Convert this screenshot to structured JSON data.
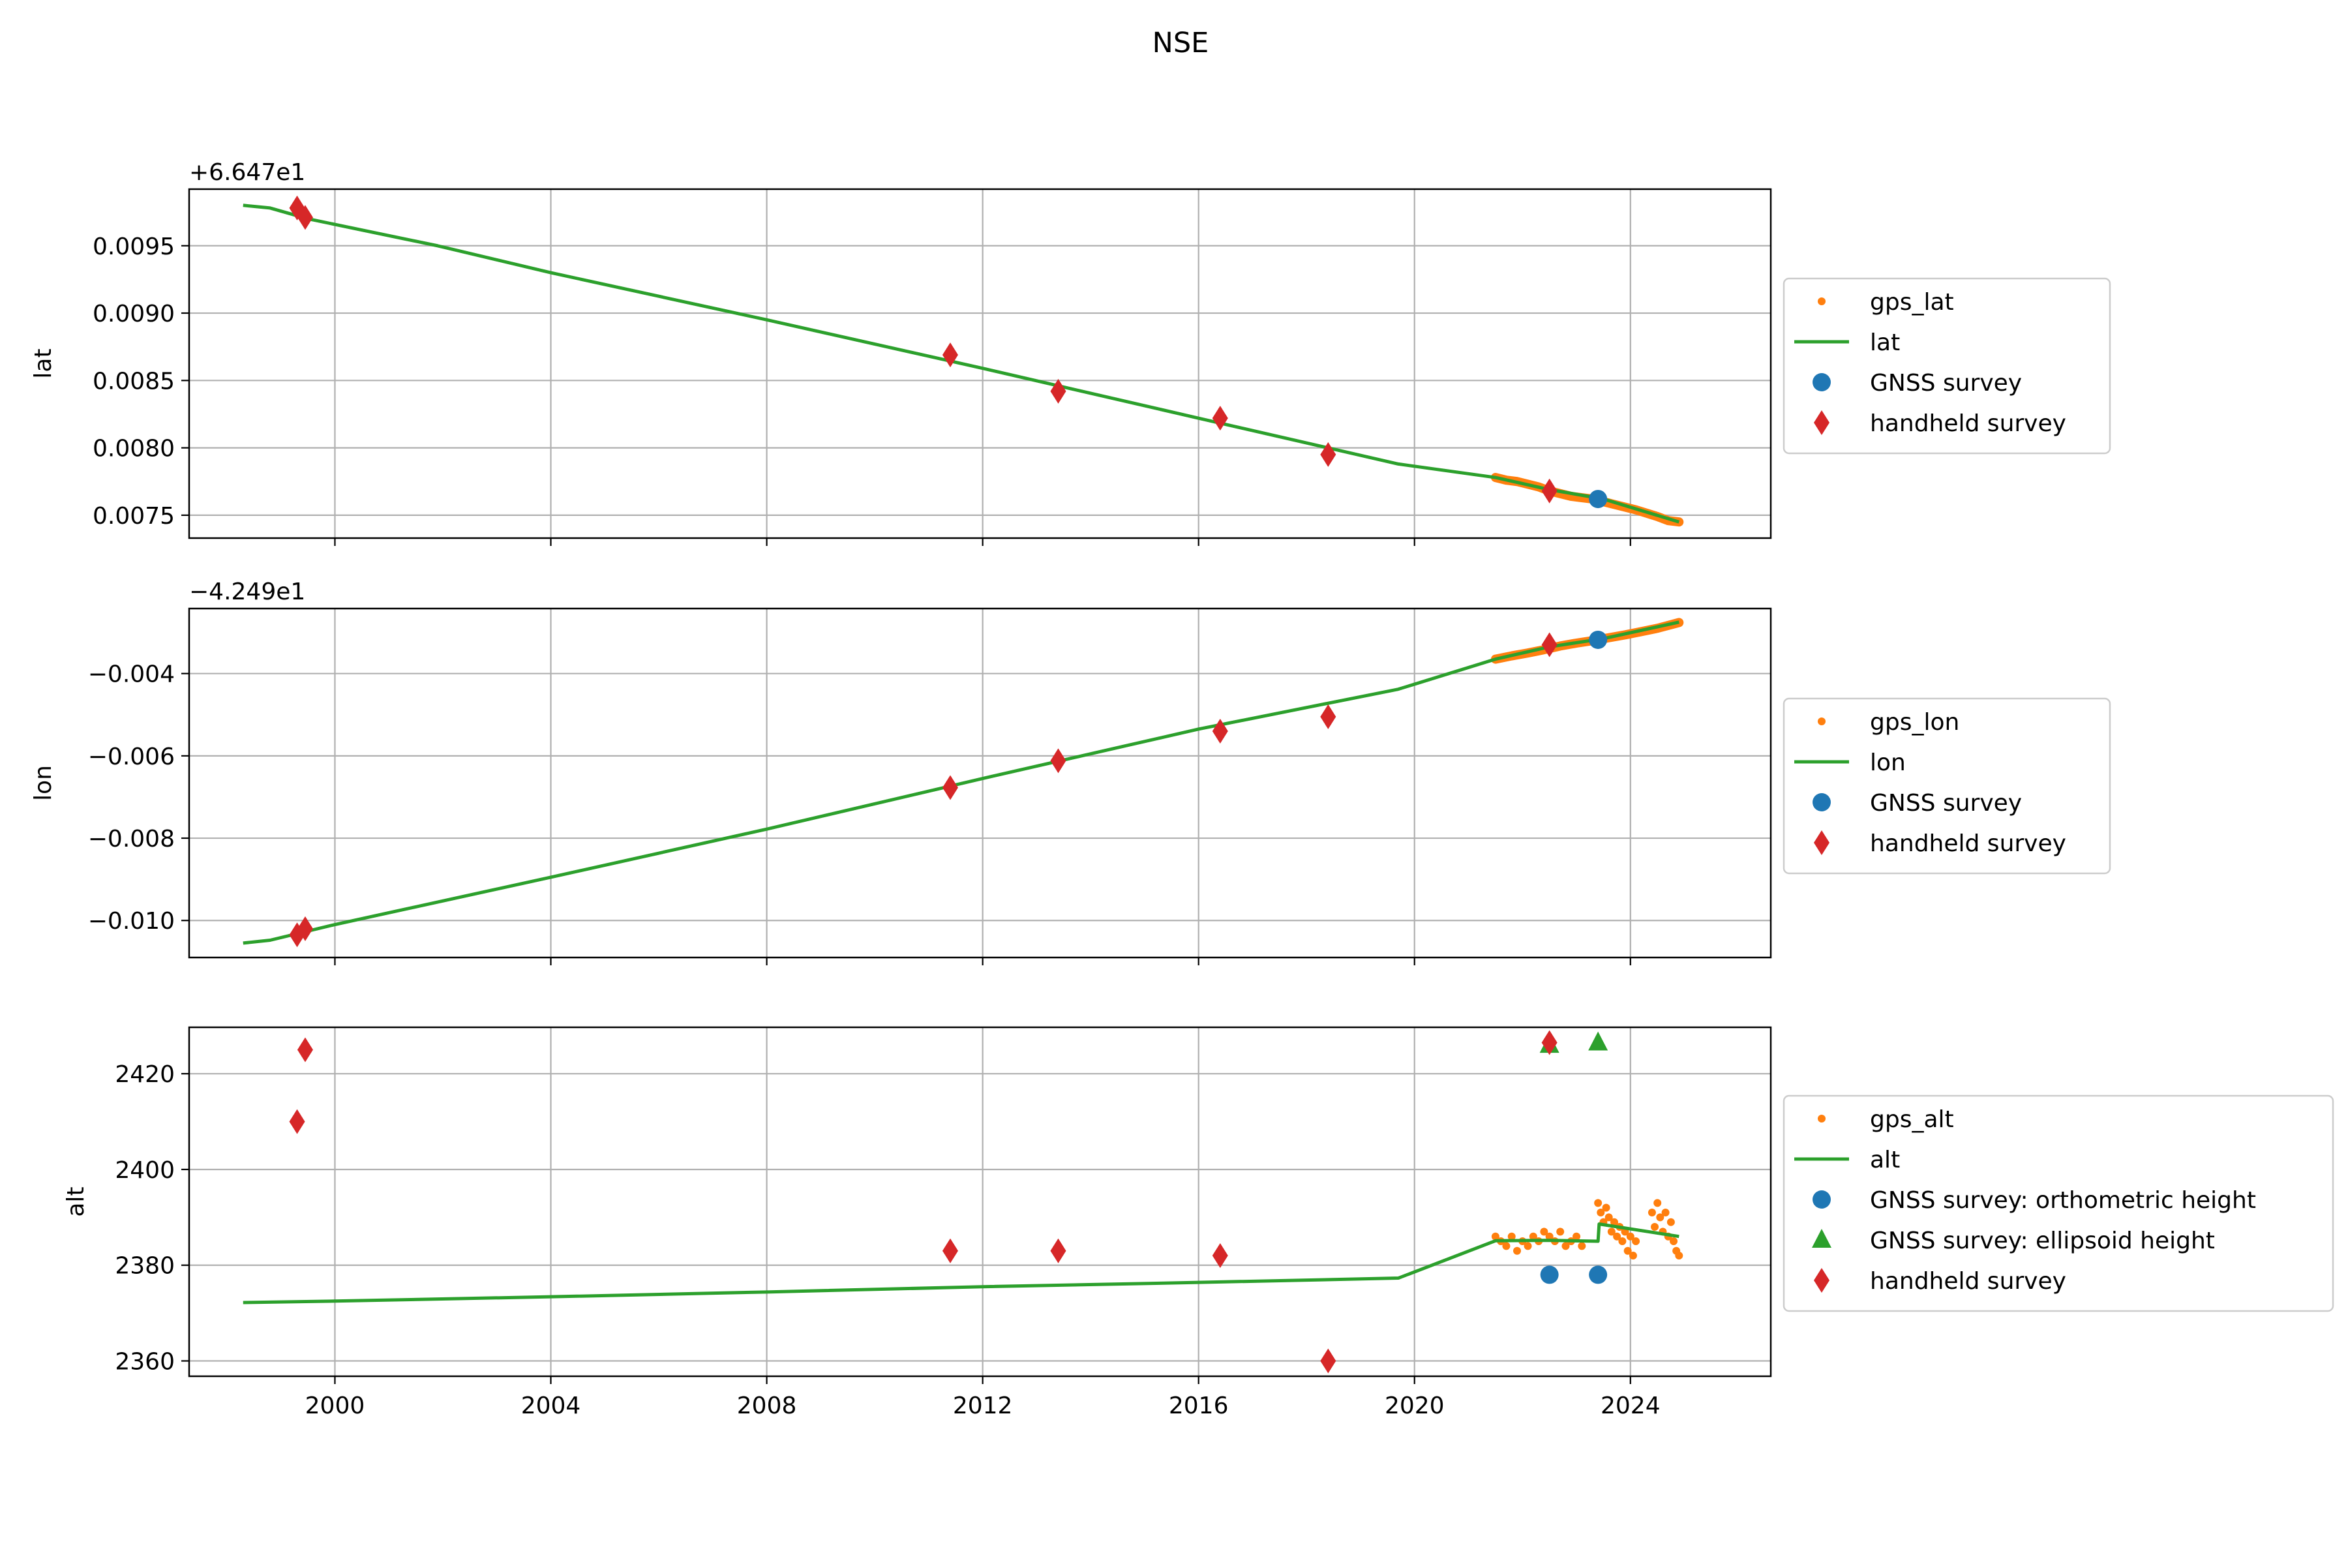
{
  "title": "NSE",
  "chart_data": [
    {
      "type": "line",
      "ylabel": "lat",
      "offset_label": "+6.647e1",
      "xlim": [
        1997.3,
        2026.6
      ],
      "ylim": [
        0.00733,
        0.00992
      ],
      "xticks": [
        2000,
        2004,
        2008,
        2012,
        2016,
        2020,
        2024
      ],
      "yticks": [
        0.0075,
        0.008,
        0.0085,
        0.009,
        0.0095
      ],
      "ytick_labels": [
        "0.0075",
        "0.0080",
        "0.0085",
        "0.0090",
        "0.0095"
      ],
      "grid": true,
      "legend": [
        "gps_lat",
        "lat",
        "GNSS survey",
        "handheld survey"
      ],
      "legend_position": "outside right",
      "series": [
        {
          "name": "gps_lat",
          "marker": "point",
          "color": "#ff7f0e",
          "x": [
            2021.5,
            2021.7,
            2021.9,
            2022.1,
            2022.3,
            2022.5,
            2022.7,
            2022.9,
            2023.1,
            2023.3,
            2023.5,
            2023.7,
            2023.9,
            2024.1,
            2024.5,
            2024.7,
            2024.9
          ],
          "y": [
            0.00778,
            0.00776,
            0.00775,
            0.00773,
            0.00771,
            0.00768,
            0.00766,
            0.00764,
            0.00763,
            0.00762,
            0.0076,
            0.00758,
            0.00756,
            0.00754,
            0.00749,
            0.00746,
            0.00745
          ]
        },
        {
          "name": "lat",
          "marker": "line",
          "color": "#2ca02c",
          "x": [
            1998.3,
            1998.8,
            1999.5,
            2001.9,
            2004.0,
            2008.0,
            2012.0,
            2016.0,
            2019.7,
            2021.5,
            2022.5,
            2023.5,
            2024.9
          ],
          "y": [
            0.0098,
            0.00978,
            0.0097,
            0.0095,
            0.0093,
            0.00895,
            0.00859,
            0.00822,
            0.00788,
            0.00778,
            0.00769,
            0.00762,
            0.00745
          ]
        },
        {
          "name": "GNSS survey",
          "marker": "circle",
          "color": "#1f77b4",
          "x": [
            2023.4
          ],
          "y": [
            0.00762
          ]
        },
        {
          "name": "handheld survey",
          "marker": "diamond",
          "color": "#d62728",
          "x": [
            1999.3,
            1999.45,
            2011.4,
            2013.4,
            2016.4,
            2018.4,
            2022.5
          ],
          "y": [
            0.00978,
            0.00971,
            0.00869,
            0.00842,
            0.00822,
            0.00795,
            0.00768
          ]
        }
      ]
    },
    {
      "type": "line",
      "ylabel": "lon",
      "offset_label": "−4.249e1",
      "xlim": [
        1997.3,
        2026.6
      ],
      "ylim": [
        -0.0109,
        -0.00242
      ],
      "xticks": [
        2000,
        2004,
        2008,
        2012,
        2016,
        2020,
        2024
      ],
      "yticks": [
        -0.01,
        -0.008,
        -0.006,
        -0.004
      ],
      "ytick_labels": [
        "−0.010",
        "−0.008",
        "−0.006",
        "−0.004"
      ],
      "grid": true,
      "legend": [
        "gps_lon",
        "lon",
        "GNSS survey",
        "handheld survey"
      ],
      "legend_position": "outside right",
      "series": [
        {
          "name": "gps_lon",
          "marker": "point",
          "color": "#ff7f0e",
          "x": [
            2021.5,
            2021.8,
            2022.1,
            2022.4,
            2022.7,
            2023.0,
            2023.3,
            2023.6,
            2023.9,
            2024.2,
            2024.5,
            2024.7,
            2024.9
          ],
          "y": [
            -0.00365,
            -0.00357,
            -0.0035,
            -0.00342,
            -0.00333,
            -0.00326,
            -0.0032,
            -0.00313,
            -0.00306,
            -0.00298,
            -0.0029,
            -0.00283,
            -0.00276
          ]
        },
        {
          "name": "lon",
          "marker": "line",
          "color": "#2ca02c",
          "x": [
            1998.3,
            1998.8,
            2000.0,
            2004.0,
            2008.0,
            2012.0,
            2016.0,
            2019.7,
            2021.5,
            2022.5,
            2023.5,
            2024.9
          ],
          "y": [
            -0.01055,
            -0.01048,
            -0.0101,
            -0.00895,
            -0.00778,
            -0.00655,
            -0.00535,
            -0.00438,
            -0.00365,
            -0.00335,
            -0.00315,
            -0.00275
          ]
        },
        {
          "name": "GNSS survey",
          "marker": "circle",
          "color": "#1f77b4",
          "x": [
            2023.4
          ],
          "y": [
            -0.00318
          ]
        },
        {
          "name": "handheld survey",
          "marker": "diamond",
          "color": "#d62728",
          "x": [
            1999.3,
            1999.45,
            2011.4,
            2013.4,
            2016.4,
            2018.4,
            2022.5
          ],
          "y": [
            -0.01035,
            -0.0102,
            -0.00677,
            -0.00612,
            -0.0054,
            -0.00505,
            -0.0033
          ]
        }
      ]
    },
    {
      "type": "line",
      "ylabel": "alt",
      "offset_label": "",
      "xlim": [
        1997.3,
        2026.6
      ],
      "ylim": [
        2356.8,
        2429.7
      ],
      "xticks": [
        2000,
        2004,
        2008,
        2012,
        2016,
        2020,
        2024
      ],
      "xtick_labels": [
        "2000",
        "2004",
        "2008",
        "2012",
        "2016",
        "2020",
        "2024"
      ],
      "yticks": [
        2360,
        2380,
        2400,
        2420
      ],
      "ytick_labels": [
        "2360",
        "2380",
        "2400",
        "2420"
      ],
      "grid": true,
      "legend": [
        "gps_alt",
        "alt",
        "GNSS survey: orthometric height",
        "GNSS survey: ellipsoid height",
        "handheld survey"
      ],
      "legend_position": "outside right",
      "series": [
        {
          "name": "gps_alt",
          "marker": "point",
          "color": "#ff7f0e",
          "x": [
            2021.5,
            2021.6,
            2021.7,
            2021.8,
            2021.9,
            2022.0,
            2022.1,
            2022.2,
            2022.3,
            2022.4,
            2022.5,
            2022.6,
            2022.7,
            2022.8,
            2022.9,
            2023.0,
            2023.1,
            2023.4,
            2023.45,
            2023.5,
            2023.55,
            2023.6,
            2023.65,
            2023.7,
            2023.75,
            2023.8,
            2023.85,
            2023.9,
            2023.95,
            2024.0,
            2024.05,
            2024.1,
            2024.4,
            2024.45,
            2024.5,
            2024.55,
            2024.6,
            2024.65,
            2024.7,
            2024.75,
            2024.8,
            2024.85,
            2024.9
          ],
          "y": [
            2386,
            2385,
            2384,
            2386,
            2383,
            2385,
            2384,
            2386,
            2385,
            2387,
            2386,
            2385,
            2387,
            2384,
            2385,
            2386,
            2384,
            2393,
            2391,
            2389,
            2392,
            2390,
            2387,
            2389,
            2386,
            2388,
            2385,
            2387,
            2383,
            2386,
            2382,
            2385,
            2391,
            2388,
            2393,
            2390,
            2387,
            2391,
            2386,
            2389,
            2385,
            2383,
            2382
          ]
        },
        {
          "name": "alt",
          "marker": "line",
          "color": "#2ca02c",
          "x": [
            1998.3,
            2000.0,
            2004.0,
            2008.0,
            2012.0,
            2016.0,
            2019.7,
            2021.5,
            2022.5,
            2023.4,
            2023.42,
            2024.9
          ],
          "y": [
            2372.2,
            2372.5,
            2373.4,
            2374.4,
            2375.5,
            2376.4,
            2377.3,
            2385.1,
            2385.2,
            2385.0,
            2388.6,
            2386.0
          ]
        },
        {
          "name": "GNSS survey: orthometric height",
          "marker": "circle",
          "color": "#1f77b4",
          "x": [
            2022.5,
            2023.4
          ],
          "y": [
            2378,
            2378
          ]
        },
        {
          "name": "GNSS survey: ellipsoid height",
          "marker": "triangle",
          "color": "#2ca02c",
          "x": [
            2022.5,
            2023.4
          ],
          "y": [
            2426,
            2426.5
          ]
        },
        {
          "name": "handheld survey",
          "marker": "diamond",
          "color": "#d62728",
          "x": [
            1999.3,
            1999.45,
            2011.4,
            2013.4,
            2016.4,
            2018.4,
            2022.5
          ],
          "y": [
            2410,
            2425,
            2383,
            2383,
            2382,
            2360,
            2426.5
          ]
        }
      ]
    }
  ]
}
